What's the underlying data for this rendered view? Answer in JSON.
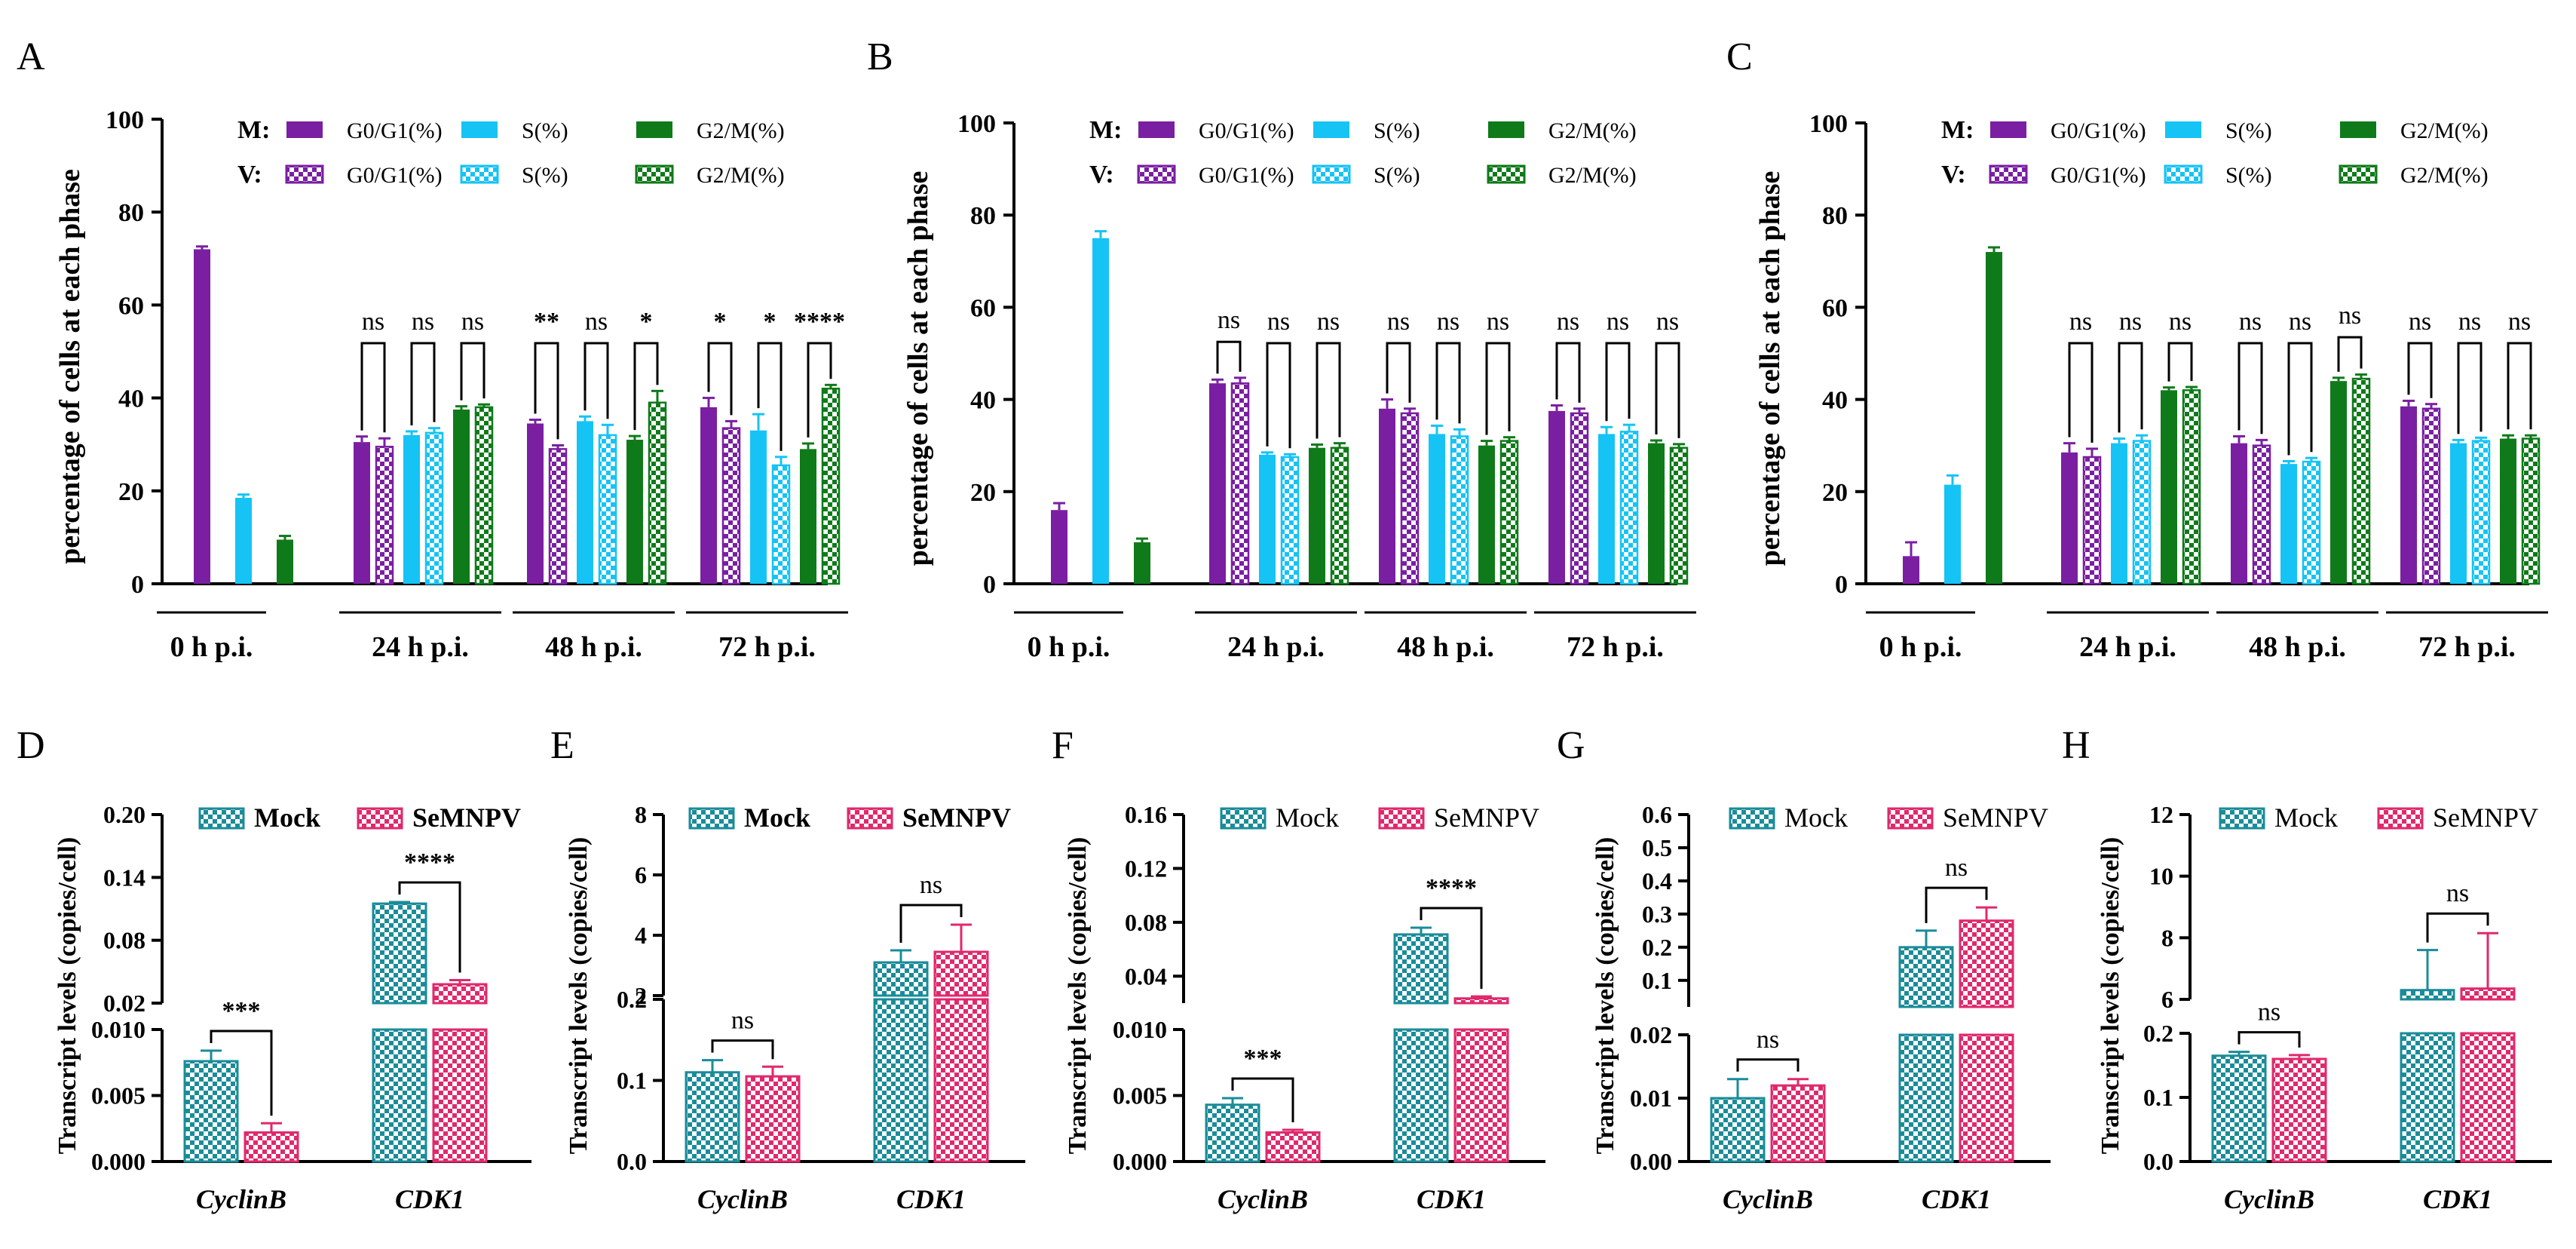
{
  "colors": {
    "purple": "#7a1fa2",
    "cyan": "#16c3f5",
    "green": "#0f7a1a",
    "teal": "#1a8c99",
    "pink": "#e0296c",
    "axis": "#000000"
  },
  "cycle_common": {
    "categories": [
      "0 h p.i.",
      "24 h p.i.",
      "48 h p.i.",
      "72 h p.i."
    ],
    "ylabel": "percentage of cells at each phase",
    "yticks": [
      "0",
      "20",
      "40",
      "60",
      "80",
      "100"
    ],
    "legend_row_labels": [
      "M:",
      "V:"
    ],
    "legend_labels": [
      "G0/G1(%)",
      "S(%)",
      "G2/M(%)"
    ]
  },
  "transcript_common": {
    "ylabel": "Transcript levels (copies/cell)",
    "categories": [
      "CyclinB",
      "CDK1"
    ],
    "legend": [
      "Mock",
      "SeMNPV"
    ]
  },
  "chart_data": [
    {
      "panel": "A",
      "type": "bar",
      "ylim": [
        0,
        100
      ],
      "series": [
        {
          "name": "M G0/G1(%)",
          "values": [
            72,
            30.5,
            34.5,
            38
          ],
          "err": [
            0.6,
            1.2,
            0.8,
            2.0
          ]
        },
        {
          "name": "M S(%)",
          "values": [
            18.5,
            32,
            35,
            33
          ],
          "err": [
            0.7,
            0.8,
            1.0,
            3.5
          ]
        },
        {
          "name": "M G2/M(%)",
          "values": [
            9.5,
            37.5,
            31,
            29
          ],
          "err": [
            0.8,
            0.7,
            0.8,
            1.2
          ]
        },
        {
          "name": "V G0/G1(%)",
          "values": [
            null,
            29.5,
            29,
            33.5
          ],
          "err": [
            null,
            1.8,
            0.8,
            1.5
          ]
        },
        {
          "name": "V S(%)",
          "values": [
            null,
            32.5,
            32,
            25.5
          ],
          "err": [
            null,
            1.0,
            2.2,
            1.8
          ]
        },
        {
          "name": "V G2/M(%)",
          "values": [
            null,
            38,
            39,
            42
          ],
          "err": [
            null,
            0.6,
            2.5,
            0.8
          ]
        }
      ],
      "significance": [
        [],
        [
          "ns",
          "ns",
          "ns"
        ],
        [
          "**",
          "ns",
          "*"
        ],
        [
          "*",
          "*",
          "****"
        ]
      ]
    },
    {
      "panel": "B",
      "type": "bar",
      "ylim": [
        0,
        100
      ],
      "series": [
        {
          "name": "M G0/G1(%)",
          "values": [
            16,
            43.5,
            38,
            37.5
          ],
          "err": [
            1.5,
            0.8,
            2.0,
            1.2
          ]
        },
        {
          "name": "M S(%)",
          "values": [
            75,
            28,
            32.5,
            32.5
          ],
          "err": [
            1.5,
            0.5,
            1.8,
            1.5
          ]
        },
        {
          "name": "M G2/M(%)",
          "values": [
            9,
            29.5,
            30,
            30.5
          ],
          "err": [
            0.8,
            0.7,
            1.0,
            0.6
          ]
        },
        {
          "name": "V G0/G1(%)",
          "values": [
            null,
            43.5,
            37,
            37
          ],
          "err": [
            null,
            1.2,
            1.0,
            1.0
          ]
        },
        {
          "name": "V S(%)",
          "values": [
            null,
            27.5,
            32,
            33
          ],
          "err": [
            null,
            0.6,
            1.5,
            1.5
          ]
        },
        {
          "name": "V G2/M(%)",
          "values": [
            null,
            29.5,
            31,
            29.5
          ],
          "err": [
            null,
            1.0,
            0.8,
            0.8
          ]
        }
      ],
      "significance": [
        [],
        [
          "ns",
          "ns",
          "ns"
        ],
        [
          "ns",
          "ns",
          "ns"
        ],
        [
          "ns",
          "ns",
          "ns"
        ]
      ]
    },
    {
      "panel": "C",
      "type": "bar",
      "ylim": [
        0,
        100
      ],
      "series": [
        {
          "name": "M G0/G1(%)",
          "values": [
            6,
            28.5,
            30.5,
            38.5
          ],
          "err": [
            3.0,
            2.0,
            1.5,
            1.2
          ]
        },
        {
          "name": "M S(%)",
          "values": [
            21.5,
            30.5,
            26,
            30.5
          ],
          "err": [
            2.0,
            1.0,
            0.6,
            0.7
          ]
        },
        {
          "name": "M G2/M(%)",
          "values": [
            72,
            42,
            44,
            31.5
          ],
          "err": [
            1.0,
            0.6,
            0.7,
            0.7
          ]
        },
        {
          "name": "V G0/G1(%)",
          "values": [
            null,
            27.5,
            30,
            38
          ],
          "err": [
            null,
            1.8,
            1.2,
            1.0
          ]
        },
        {
          "name": "V S(%)",
          "values": [
            null,
            31,
            26.5,
            31
          ],
          "err": [
            null,
            1.2,
            0.8,
            0.7
          ]
        },
        {
          "name": "V G2/M(%)",
          "values": [
            null,
            42,
            44.5,
            31.5
          ],
          "err": [
            null,
            0.7,
            0.9,
            0.7
          ]
        }
      ],
      "significance": [
        [],
        [
          "ns",
          "ns",
          "ns"
        ],
        [
          "ns",
          "ns",
          "ns"
        ],
        [
          "ns",
          "ns",
          "ns"
        ]
      ]
    },
    {
      "panel": "D",
      "type": "bar",
      "legend_bold": true,
      "upper_range": [
        0.02,
        0.2
      ],
      "upper_ticks": [
        "0.02",
        "0.08",
        "0.14",
        "0.20"
      ],
      "lower_range": [
        0,
        0.01
      ],
      "lower_ticks": [
        "0.000",
        "0.005",
        "0.010"
      ],
      "series": [
        {
          "name": "Mock",
          "values": [
            0.0076,
            0.115
          ],
          "err": [
            0.0008,
            0.0015
          ]
        },
        {
          "name": "SeMNPV",
          "values": [
            0.0022,
            0.038
          ],
          "err": [
            0.0007,
            0.004
          ]
        }
      ],
      "significance": [
        "***",
        "****"
      ]
    },
    {
      "panel": "E",
      "type": "bar",
      "legend_bold": true,
      "upper_range": [
        2,
        8
      ],
      "upper_ticks": [
        "2",
        "4",
        "6",
        "8"
      ],
      "lower_range": [
        0,
        0.2
      ],
      "lower_ticks": [
        "0.0",
        "0.1",
        "0.2"
      ],
      "series": [
        {
          "name": "Mock",
          "values": [
            0.11,
            3.1
          ],
          "err": [
            0.015,
            0.4
          ]
        },
        {
          "name": "SeMNPV",
          "values": [
            0.105,
            3.45
          ],
          "err": [
            0.012,
            0.9
          ]
        }
      ],
      "significance": [
        "ns",
        "ns"
      ]
    },
    {
      "panel": "F",
      "type": "bar",
      "legend_bold": false,
      "upper_range": [
        0.02,
        0.16
      ],
      "upper_ticks": [
        "0.04",
        "0.08",
        "0.12",
        "0.16"
      ],
      "lower_range": [
        0,
        0.01
      ],
      "lower_ticks": [
        "0.000",
        "0.005",
        "0.010"
      ],
      "series": [
        {
          "name": "Mock",
          "values": [
            0.0043,
            0.071
          ],
          "err": [
            0.0005,
            0.005
          ]
        },
        {
          "name": "SeMNPV",
          "values": [
            0.0022,
            0.0235
          ],
          "err": [
            0.0002,
            0.0015
          ]
        }
      ],
      "significance": [
        "***",
        "****"
      ]
    },
    {
      "panel": "G",
      "type": "bar",
      "legend_bold": false,
      "upper_range": [
        0.02,
        0.6
      ],
      "upper_ticks": [
        "0.1",
        "0.2",
        "0.3",
        "0.4",
        "0.5",
        "0.6"
      ],
      "lower_range": [
        0,
        0.02
      ],
      "lower_ticks": [
        "0.00",
        "0.01",
        "0.02"
      ],
      "series": [
        {
          "name": "Mock",
          "values": [
            0.01,
            0.2
          ],
          "err": [
            0.003,
            0.05
          ]
        },
        {
          "name": "SeMNPV",
          "values": [
            0.012,
            0.28
          ],
          "err": [
            0.001,
            0.04
          ]
        }
      ],
      "significance": [
        "ns",
        "ns"
      ]
    },
    {
      "panel": "H",
      "type": "bar",
      "legend_bold": false,
      "upper_range": [
        6,
        12
      ],
      "upper_ticks": [
        "6",
        "8",
        "10",
        "12"
      ],
      "lower_range": [
        0,
        0.2
      ],
      "lower_ticks": [
        "0.0",
        "0.1",
        "0.2"
      ],
      "series": [
        {
          "name": "Mock",
          "values": [
            0.165,
            6.3
          ],
          "err": [
            0.006,
            1.3
          ]
        },
        {
          "name": "SeMNPV",
          "values": [
            0.16,
            6.35
          ],
          "err": [
            0.006,
            1.8
          ]
        }
      ],
      "significance": [
        "ns",
        "ns"
      ]
    }
  ]
}
